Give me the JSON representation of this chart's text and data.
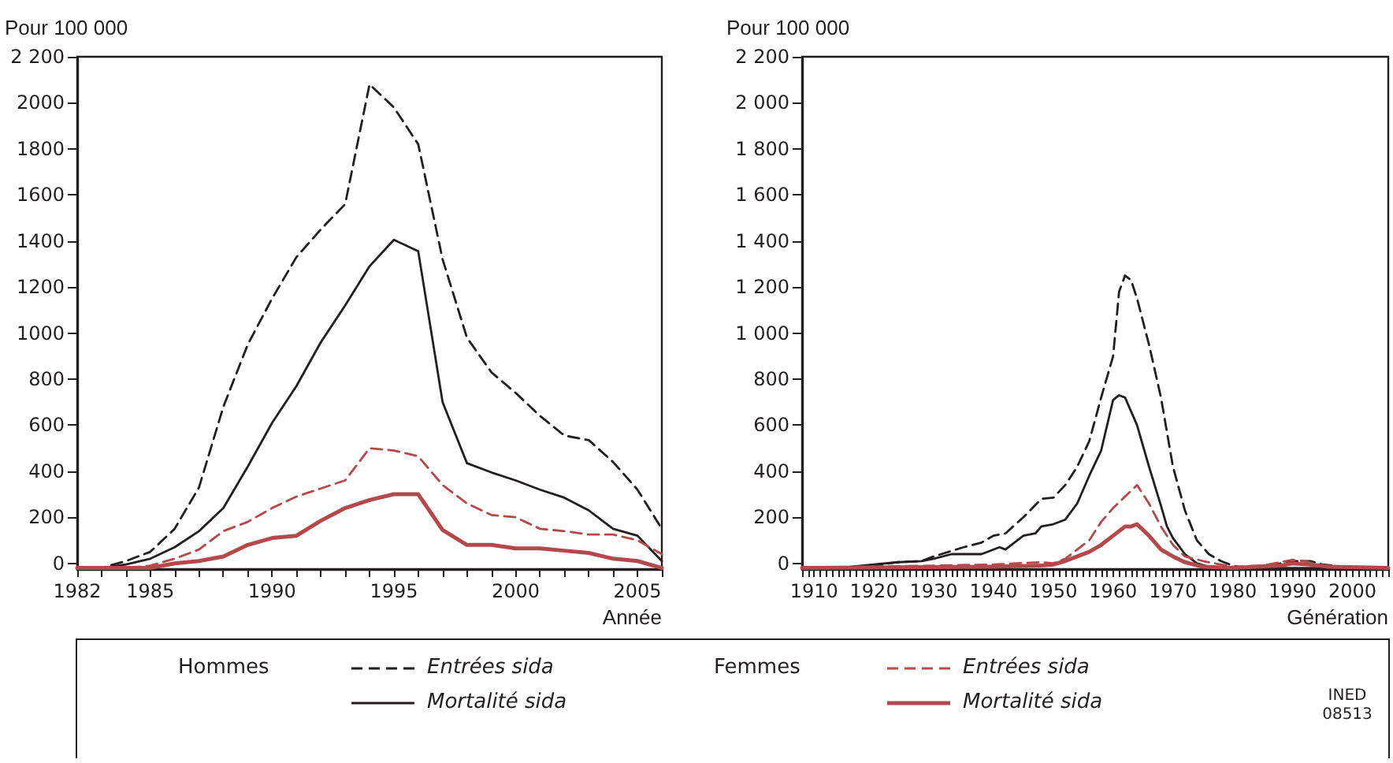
{
  "chart_data": [
    {
      "type": "line",
      "ylabel": "Pour 100 000",
      "xlabel": "Année",
      "legend": "bottom",
      "grid": false,
      "annotations": [
        "Hommes",
        "Femmes",
        "INED 08513"
      ],
      "x": [
        1982,
        1983,
        1984,
        1985,
        1986,
        1987,
        1988,
        1989,
        1990,
        1991,
        1992,
        1993,
        1994,
        1995,
        1996,
        1997,
        1998,
        1999,
        2000,
        2001,
        2002,
        2003,
        2004,
        2005,
        2006
      ],
      "xlim": [
        1982,
        2006
      ],
      "xticks": [
        1982,
        {
          "value": 1983,
          "label": null
        },
        {
          "value": 1984,
          "label": null
        },
        1985,
        {
          "value": 1986,
          "label": null
        },
        {
          "value": 1987,
          "label": null
        },
        {
          "value": 1988,
          "label": null
        },
        {
          "value": 1989,
          "label": null
        },
        1990,
        {
          "value": 1991,
          "label": null
        },
        {
          "value": 1992,
          "label": null
        },
        {
          "value": 1993,
          "label": null
        },
        {
          "value": 1994,
          "label": null
        },
        1995,
        {
          "value": 1996,
          "label": null
        },
        {
          "value": 1997,
          "label": null
        },
        {
          "value": 1998,
          "label": null
        },
        {
          "value": 1999,
          "label": null
        },
        2000,
        {
          "value": 2001,
          "label": null
        },
        {
          "value": 2002,
          "label": null
        },
        {
          "value": 2003,
          "label": null
        },
        {
          "value": 2004,
          "label": null
        },
        2005,
        {
          "value": 2006,
          "label": null
        }
      ],
      "ylim": [
        -25,
        2200
      ],
      "yticks": [
        0,
        200,
        400,
        600,
        800,
        1000,
        1200,
        1400,
        1600,
        1800,
        2000,
        {
          "value": 2200,
          "label": "2 200"
        }
      ],
      "series": [
        {
          "name": "Entrées sida",
          "color": "#231f20",
          "line_style": "dashed",
          "values": [
            -20,
            -20,
            10,
            50,
            150,
            330,
            680,
            950,
            1150,
            1330,
            1450,
            1560,
            2080,
            1980,
            1820,
            1320,
            980,
            830,
            740,
            640,
            555,
            535,
            440,
            320,
            150
          ]
        },
        {
          "name": "Mortalité sida",
          "color": "#231f20",
          "line_style": "solid",
          "values": [
            -20,
            -20,
            -5,
            20,
            70,
            140,
            240,
            420,
            610,
            770,
            960,
            1120,
            1290,
            1405,
            1355,
            700,
            435,
            395,
            360,
            320,
            285,
            230,
            150,
            120,
            10
          ]
        },
        {
          "name": "Entrées sida",
          "color": "#b5484a",
          "line_style": "dashed",
          "values": [
            -20,
            -20,
            -20,
            -10,
            20,
            60,
            140,
            180,
            240,
            290,
            325,
            360,
            500,
            490,
            465,
            340,
            260,
            210,
            200,
            150,
            140,
            125,
            125,
            100,
            40
          ]
        },
        {
          "name": "Mortalité sida",
          "color": "#b5484a",
          "line_style": "solid",
          "values": [
            -20,
            -20,
            -20,
            -20,
            0,
            10,
            30,
            80,
            110,
            120,
            185,
            240,
            275,
            300,
            300,
            145,
            80,
            80,
            65,
            65,
            55,
            45,
            20,
            10,
            -20
          ]
        }
      ]
    },
    {
      "type": "line",
      "ylabel": "Pour 100 000",
      "xlabel": "Génération",
      "grid": false,
      "xlim": [
        1908,
        2006
      ],
      "xticks": [
        {
          "value": 1908,
          "label": null
        },
        {
          "value": 1909,
          "label": null
        },
        1910,
        {
          "value": 1911,
          "label": null
        },
        {
          "value": 1912,
          "label": null
        },
        {
          "value": 1913,
          "label": null
        },
        {
          "value": 1914,
          "label": null
        },
        {
          "value": 1915,
          "label": null
        },
        {
          "value": 1916,
          "label": null
        },
        {
          "value": 1917,
          "label": null
        },
        {
          "value": 1918,
          "label": null
        },
        {
          "value": 1919,
          "label": null
        },
        1920,
        {
          "value": 1921,
          "label": null
        },
        {
          "value": 1922,
          "label": null
        },
        {
          "value": 1923,
          "label": null
        },
        {
          "value": 1924,
          "label": null
        },
        {
          "value": 1925,
          "label": null
        },
        {
          "value": 1926,
          "label": null
        },
        {
          "value": 1927,
          "label": null
        },
        {
          "value": 1928,
          "label": null
        },
        {
          "value": 1929,
          "label": null
        },
        1930,
        {
          "value": 1931,
          "label": null
        },
        {
          "value": 1932,
          "label": null
        },
        {
          "value": 1933,
          "label": null
        },
        {
          "value": 1934,
          "label": null
        },
        {
          "value": 1935,
          "label": null
        },
        {
          "value": 1936,
          "label": null
        },
        {
          "value": 1937,
          "label": null
        },
        {
          "value": 1938,
          "label": null
        },
        {
          "value": 1939,
          "label": null
        },
        1940,
        {
          "value": 1941,
          "label": null
        },
        {
          "value": 1942,
          "label": null
        },
        {
          "value": 1943,
          "label": null
        },
        {
          "value": 1944,
          "label": null
        },
        {
          "value": 1945,
          "label": null
        },
        {
          "value": 1946,
          "label": null
        },
        {
          "value": 1947,
          "label": null
        },
        {
          "value": 1948,
          "label": null
        },
        {
          "value": 1949,
          "label": null
        },
        1950,
        {
          "value": 1951,
          "label": null
        },
        {
          "value": 1952,
          "label": null
        },
        {
          "value": 1953,
          "label": null
        },
        {
          "value": 1954,
          "label": null
        },
        {
          "value": 1955,
          "label": null
        },
        {
          "value": 1956,
          "label": null
        },
        {
          "value": 1957,
          "label": null
        },
        {
          "value": 1958,
          "label": null
        },
        {
          "value": 1959,
          "label": null
        },
        1960,
        {
          "value": 1961,
          "label": null
        },
        {
          "value": 1962,
          "label": null
        },
        {
          "value": 1963,
          "label": null
        },
        {
          "value": 1964,
          "label": null
        },
        {
          "value": 1965,
          "label": null
        },
        {
          "value": 1966,
          "label": null
        },
        {
          "value": 1967,
          "label": null
        },
        {
          "value": 1968,
          "label": null
        },
        {
          "value": 1969,
          "label": null
        },
        1970,
        {
          "value": 1971,
          "label": null
        },
        {
          "value": 1972,
          "label": null
        },
        {
          "value": 1973,
          "label": null
        },
        {
          "value": 1974,
          "label": null
        },
        {
          "value": 1975,
          "label": null
        },
        {
          "value": 1976,
          "label": null
        },
        {
          "value": 1977,
          "label": null
        },
        {
          "value": 1978,
          "label": null
        },
        {
          "value": 1979,
          "label": null
        },
        1980,
        {
          "value": 1981,
          "label": null
        },
        {
          "value": 1982,
          "label": null
        },
        {
          "value": 1983,
          "label": null
        },
        {
          "value": 1984,
          "label": null
        },
        {
          "value": 1985,
          "label": null
        },
        {
          "value": 1986,
          "label": null
        },
        {
          "value": 1987,
          "label": null
        },
        {
          "value": 1988,
          "label": null
        },
        {
          "value": 1989,
          "label": null
        },
        1990,
        {
          "value": 1991,
          "label": null
        },
        {
          "value": 1992,
          "label": null
        },
        {
          "value": 1993,
          "label": null
        },
        {
          "value": 1994,
          "label": null
        },
        {
          "value": 1995,
          "label": null
        },
        {
          "value": 1996,
          "label": null
        },
        {
          "value": 1997,
          "label": null
        },
        {
          "value": 1998,
          "label": null
        },
        {
          "value": 1999,
          "label": null
        },
        2000,
        {
          "value": 2001,
          "label": null
        },
        {
          "value": 2002,
          "label": null
        },
        {
          "value": 2003,
          "label": null
        },
        {
          "value": 2004,
          "label": null
        },
        {
          "value": 2005,
          "label": null
        },
        {
          "value": 2006,
          "label": null
        }
      ],
      "ylim": [
        -25,
        2200
      ],
      "yticks": [
        0,
        200,
        400,
        600,
        800,
        {
          "value": 1000,
          "label": "1 000"
        },
        {
          "value": 1200,
          "label": "1 200"
        },
        {
          "value": 1400,
          "label": "1 400"
        },
        {
          "value": 1600,
          "label": "1 600"
        },
        {
          "value": 1800,
          "label": "1 800"
        },
        {
          "value": 2000,
          "label": "2 000"
        },
        {
          "value": 2200,
          "label": "2 200"
        }
      ],
      "series": [
        {
          "color": "#231f20",
          "line_style": "dashed",
          "x": [
            1908,
            1914,
            1916,
            1920,
            1924,
            1928,
            1930,
            1935,
            1938,
            1940,
            1942,
            1945,
            1948,
            1950,
            1952,
            1954,
            1956,
            1958,
            1960,
            1961,
            1962,
            1963,
            1964,
            1966,
            1968,
            1970,
            1972,
            1974,
            1976,
            1978,
            1980,
            1982,
            1985,
            1988,
            1990,
            1993,
            1995,
            2000,
            2006
          ],
          "values": [
            -20,
            -20,
            -15,
            -10,
            5,
            10,
            30,
            70,
            90,
            120,
            130,
            200,
            280,
            285,
            340,
            420,
            530,
            720,
            900,
            1180,
            1250,
            1230,
            1150,
            950,
            720,
            420,
            230,
            100,
            40,
            10,
            -10,
            -20,
            -15,
            0,
            10,
            10,
            -5,
            -20,
            -20
          ]
        },
        {
          "color": "#231f20",
          "line_style": "solid",
          "x": [
            1908,
            1916,
            1920,
            1924,
            1928,
            1930,
            1933,
            1938,
            1941,
            1942,
            1945,
            1947,
            1948,
            1950,
            1952,
            1954,
            1956,
            1958,
            1959,
            1960,
            1961,
            1962,
            1964,
            1966,
            1968,
            1969,
            1970,
            1972,
            1974,
            1976,
            1980,
            2006
          ],
          "values": [
            -20,
            -15,
            -5,
            5,
            10,
            20,
            40,
            40,
            70,
            60,
            120,
            130,
            160,
            170,
            190,
            260,
            380,
            490,
            600,
            710,
            730,
            720,
            600,
            420,
            250,
            160,
            110,
            40,
            0,
            -15,
            -20,
            -20
          ]
        },
        {
          "color": "#b5484a",
          "line_style": "dashed",
          "x": [
            1908,
            1930,
            1940,
            1948,
            1950,
            1952,
            1954,
            1956,
            1958,
            1960,
            1962,
            1964,
            1966,
            1968,
            1970,
            1972,
            1975,
            1980,
            1985,
            1988,
            1990,
            1992,
            1995,
            2000,
            2006
          ],
          "values": [
            -20,
            -10,
            -5,
            5,
            0,
            20,
            60,
            100,
            180,
            240,
            290,
            340,
            260,
            160,
            80,
            30,
            10,
            -15,
            -10,
            5,
            15,
            10,
            -10,
            -15,
            -20
          ]
        },
        {
          "color": "#b5484a",
          "line_style": "solid",
          "x": [
            1908,
            1940,
            1948,
            1950,
            1952,
            1954,
            1956,
            1958,
            1960,
            1962,
            1963,
            1964,
            1966,
            1968,
            1970,
            1972,
            1975,
            1980,
            1988,
            1990,
            1993,
            1996,
            2006
          ],
          "values": [
            -20,
            -15,
            -10,
            -5,
            10,
            30,
            50,
            80,
            120,
            160,
            160,
            170,
            120,
            60,
            30,
            5,
            -15,
            -20,
            -10,
            0,
            -5,
            -15,
            -20
          ]
        }
      ]
    }
  ]
}
